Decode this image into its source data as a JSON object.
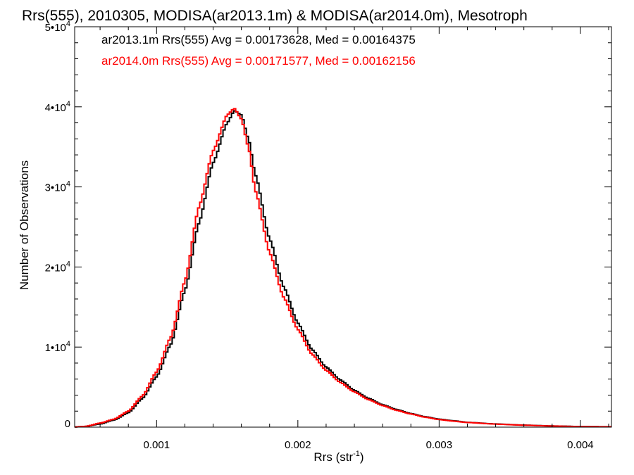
{
  "chart_data": {
    "type": "line",
    "title": "Rrs(555), 2010305, MODISA(ar2013.1m) & MODISA(ar2014.0m), Mesotroph",
    "xlabel": {
      "base": "Rrs (str",
      "sup": "-1",
      "end": ")"
    },
    "ylabel": "Number of Observations",
    "xlim": [
      0.00042,
      0.00422
    ],
    "ylim": [
      0,
      50000
    ],
    "xticks": [
      {
        "value": 0.001,
        "label": "0.001"
      },
      {
        "value": 0.002,
        "label": "0.002"
      },
      {
        "value": 0.003,
        "label": "0.003"
      },
      {
        "value": 0.004,
        "label": "0.004"
      }
    ],
    "yticks": [
      {
        "value": 0,
        "label": "0"
      },
      {
        "value": 10000,
        "base": "1•10",
        "sup": "4"
      },
      {
        "value": 20000,
        "base": "2•10",
        "sup": "4"
      },
      {
        "value": 30000,
        "base": "3•10",
        "sup": "4"
      },
      {
        "value": 40000,
        "base": "4•10",
        "sup": "4"
      },
      {
        "value": 50000,
        "base": "5•10",
        "sup": "4"
      }
    ],
    "grid": false,
    "legend_position": "top-left",
    "legend": [
      "ar2013.1m Rrs(555) Avg = 0.00173628, Med = 0.00164375",
      "ar2014.0m Rrs(555) Avg = 0.00171577, Med = 0.00162156"
    ],
    "series": [
      {
        "color": "#000000",
        "x": [
          0.0004,
          0.0005,
          0.0006,
          0.0007,
          0.0008,
          0.0009,
          0.001,
          0.0011,
          0.0012,
          0.0013,
          0.0014,
          0.0015,
          0.00155,
          0.0016,
          0.00165,
          0.0017,
          0.0018,
          0.0019,
          0.002,
          0.0021,
          0.0022,
          0.0023,
          0.0024,
          0.0025,
          0.0026,
          0.0027,
          0.0028,
          0.0029,
          0.003,
          0.0031,
          0.0032,
          0.0034,
          0.0036,
          0.0038,
          0.004,
          0.0042
        ],
        "y": [
          0,
          100,
          400,
          900,
          1800,
          3600,
          6300,
          10300,
          17000,
          25500,
          33000,
          38000,
          39500,
          39000,
          36000,
          31500,
          23500,
          17500,
          13000,
          9700,
          7500,
          5900,
          4600,
          3600,
          2800,
          2200,
          1700,
          1300,
          1000,
          800,
          600,
          400,
          250,
          150,
          80,
          50
        ]
      },
      {
        "color": "#ff0000",
        "x": [
          0.0004,
          0.0005,
          0.0006,
          0.0007,
          0.0008,
          0.0009,
          0.001,
          0.0011,
          0.0012,
          0.0013,
          0.0014,
          0.0015,
          0.00155,
          0.0016,
          0.00165,
          0.0017,
          0.0018,
          0.0019,
          0.002,
          0.0021,
          0.0022,
          0.0023,
          0.0024,
          0.0025,
          0.0026,
          0.0027,
          0.0028,
          0.0029,
          0.003,
          0.0031,
          0.0032,
          0.0034,
          0.0036,
          0.0038,
          0.004,
          0.0042
        ],
        "y": [
          0,
          100,
          500,
          1000,
          2000,
          3900,
          6900,
          11200,
          18200,
          27500,
          34500,
          39000,
          39800,
          38500,
          35000,
          29500,
          21800,
          16200,
          12200,
          9100,
          7100,
          5600,
          4400,
          3450,
          2700,
          2100,
          1650,
          1250,
          950,
          750,
          580,
          380,
          240,
          140,
          70,
          40
        ]
      }
    ]
  }
}
